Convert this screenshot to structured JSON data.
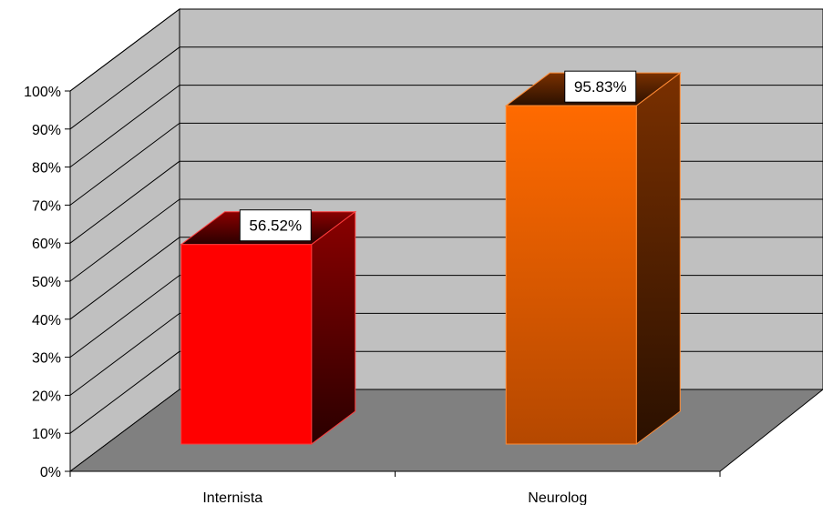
{
  "chart_data": {
    "type": "bar",
    "title": "",
    "xlabel": "",
    "ylabel": "",
    "categories": [
      "Internista",
      "Neurolog"
    ],
    "values": [
      56.52,
      95.83
    ],
    "data_labels": [
      "56.52%",
      "95.83%"
    ],
    "ylim": [
      0,
      100
    ],
    "yticks": [
      "0%",
      "10%",
      "20%",
      "30%",
      "40%",
      "50%",
      "60%",
      "70%",
      "80%",
      "90%",
      "100%"
    ],
    "grid": true,
    "legend": "none",
    "three_d": true,
    "colors": {
      "bar_1_front": "#ff0000",
      "bar_1_side": "#7a0000",
      "bar_2_front": "#ff6600",
      "bar_2_side": "#7a3000",
      "back_wall": "#c0c0c0",
      "floor": "#808080"
    }
  }
}
